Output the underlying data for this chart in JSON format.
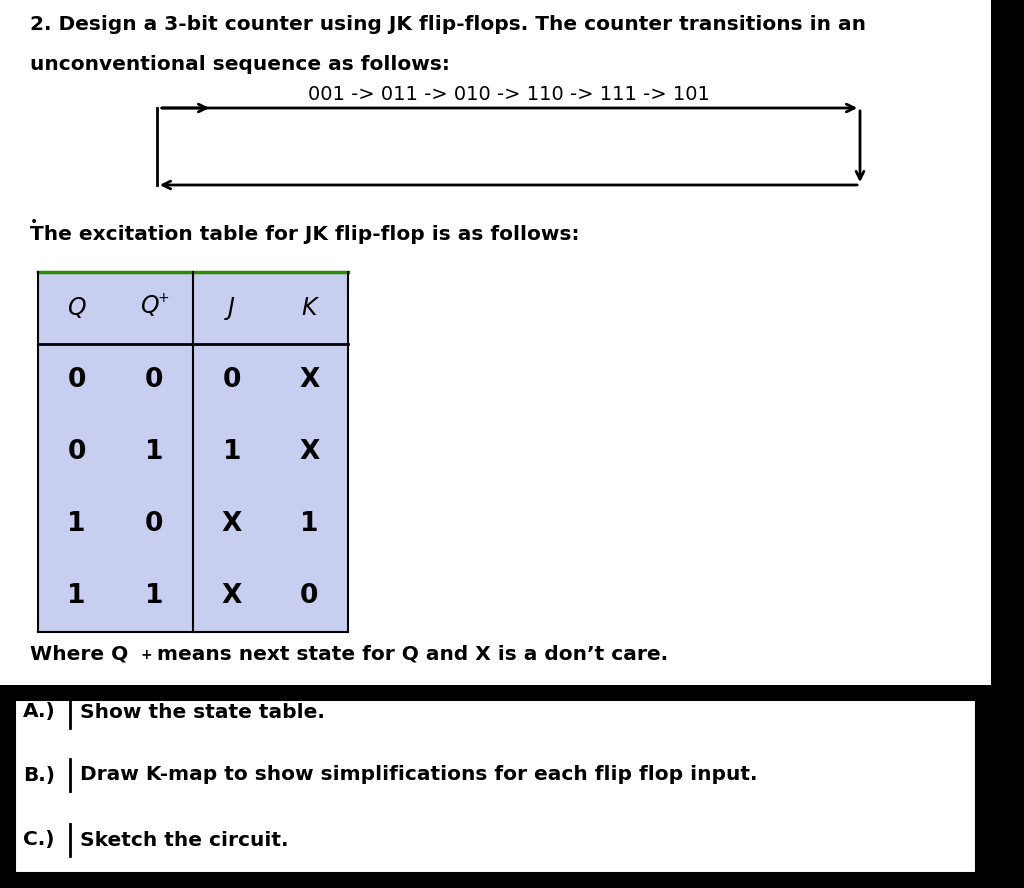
{
  "title_line1": "2. Design a 3-bit counter using JK flip-flops. The counter transitions in an",
  "title_line2": "unconventional sequence as follows:",
  "sequence_text": "001 -> 011 -> 010 -> 110 -> 111 -> 101",
  "excitation_title": "The excitation table for JK flip-flop is as follows:",
  "table_headers_col1": [
    "Q",
    "0",
    "0",
    "1",
    "1"
  ],
  "table_headers_col2": [
    "Q+",
    "0",
    "1",
    "0",
    "1"
  ],
  "table_headers_col3": [
    "J",
    "0",
    "1",
    "X",
    "X"
  ],
  "table_headers_col4": [
    "K",
    "X",
    "X",
    "1",
    "0"
  ],
  "table_bg_color": "#c8cef0",
  "table_top_line_color": "#2e8b00",
  "note_text_1": "Where Q",
  "note_text_2": "+ means next state for Q and X is a don’t care.",
  "part_a": "A.)",
  "part_a_text": "Show the state table.",
  "part_b": "B.)",
  "part_b_text": "Draw K-map to show simplifications for each flip flop input.",
  "part_c": "C.)",
  "part_c_text": "Sketch the circuit.",
  "white": "#ffffff",
  "black": "#000000",
  "page_bg": "#ffffff"
}
